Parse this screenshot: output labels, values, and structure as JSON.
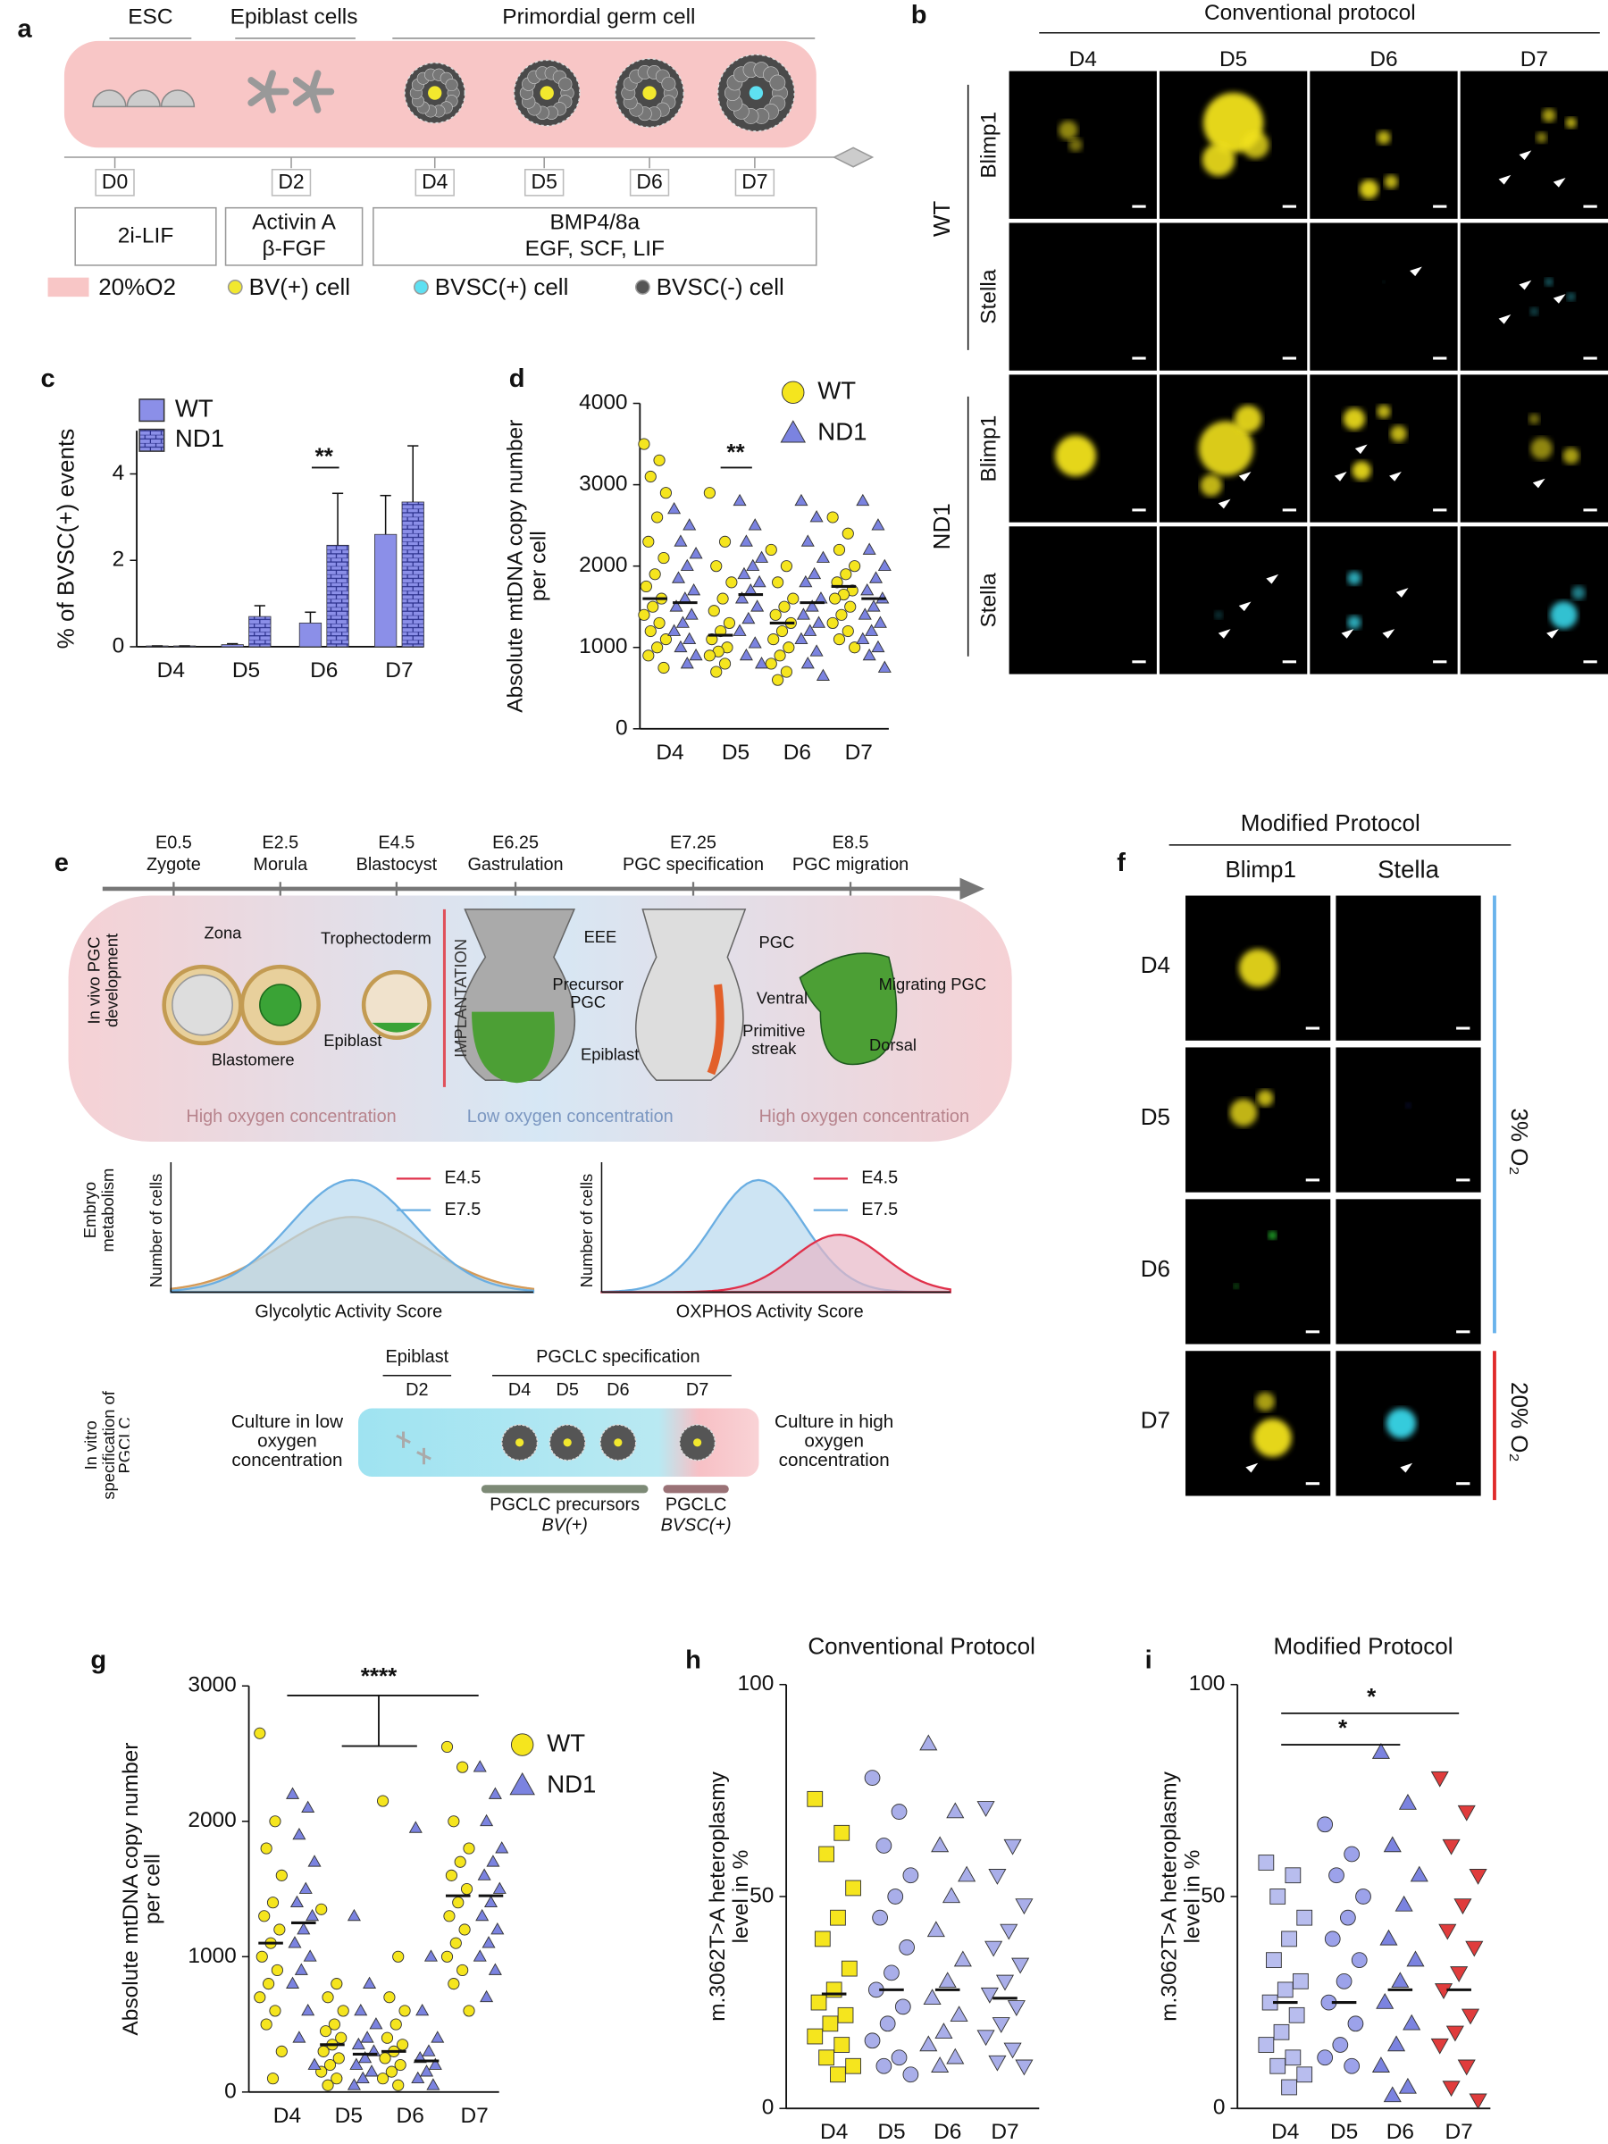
{
  "panel_a": {
    "label": "a",
    "stages": [
      "ESC",
      "Epiblast cells",
      "Primordial germ cell"
    ],
    "days": [
      "D0",
      "D2",
      "D4",
      "D5",
      "D6",
      "D7"
    ],
    "media": [
      [
        "2i-LIF"
      ],
      [
        "Activin A",
        "β-FGF"
      ],
      [
        "BMP4/8a",
        "EGF, SCF, LIF"
      ]
    ],
    "legend": [
      "20%O2",
      "BV(+) cell",
      "BVSC(+) cell",
      "BVSC(-) cell"
    ]
  },
  "panel_b": {
    "label": "b",
    "title": "Conventional protocol",
    "columns": [
      "D4",
      "D5",
      "D6",
      "D7"
    ],
    "rows": [
      "Blimp1",
      "Stella",
      "Blimp1",
      "Stella"
    ],
    "groups": [
      "WT",
      "ND1"
    ]
  },
  "panel_e": {
    "label": "e",
    "timeline": [
      [
        "E0.5",
        "Zygote"
      ],
      [
        "E2.5",
        "Morula"
      ],
      [
        "E4.5",
        "Blastocyst"
      ],
      [
        "E6.25",
        "Gastrulation"
      ],
      [
        "E7.25",
        "PGC specification"
      ],
      [
        "E8.5",
        "PGC migration"
      ]
    ],
    "in_vivo": "In vivo PGC development",
    "embryo_labels": [
      "Zona",
      "Trophectoderm",
      "Blastomere",
      "Epiblast",
      "IMPLANTATION",
      "EEE",
      "Precursor PGC",
      "Epiblast",
      "PGC",
      "Primitive streak",
      "Ventral",
      "Dorsal",
      "Migrating PGC"
    ],
    "oxygen": [
      "High oxygen concentration",
      "Low oxygen concentration",
      "High oxygen concentration"
    ],
    "metabolism": "Embryo metabolism",
    "plots": [
      {
        "ylabel": "Number of cells",
        "xlabel": "Glycolytic Activity Score",
        "legend": [
          "E4.5",
          "E7.5"
        ]
      },
      {
        "ylabel": "Number of cells",
        "xlabel": "OXPHOS Activity Score",
        "legend": [
          "E4.5",
          "E7.5"
        ]
      }
    ],
    "in_vitro": "In vitro specification of PGCLC",
    "steps": [
      "Epiblast",
      "D2",
      "PGCLC specification",
      "D4",
      "D5",
      "D6",
      "D7"
    ],
    "culture": [
      "Culture in low oxygen concentration",
      "Culture in high oxygen concentration"
    ],
    "bars": [
      [
        "PGCLC precursors",
        "BV(+)"
      ],
      [
        "PGCLC",
        "BVSC(+)"
      ]
    ]
  },
  "panel_f": {
    "label": "f",
    "title": "Modified Protocol",
    "columns": [
      "Blimp1",
      "Stella"
    ],
    "rows": [
      "D4",
      "D5",
      "D6",
      "D7"
    ],
    "conditions": [
      "3% O₂",
      "20% O₂"
    ]
  },
  "chart_data": [
    {
      "panel": "c",
      "type": "bar",
      "categories": [
        "D4",
        "D5",
        "D6",
        "D7"
      ],
      "ylabel": "% of BVSC(+) events",
      "ylim": [
        0,
        5
      ],
      "yticks": [
        0,
        2,
        4
      ],
      "annotations": [
        "**"
      ],
      "series": [
        {
          "name": "WT",
          "color": "#8b8fe8",
          "values": [
            0.02,
            0.05,
            0.55,
            2.6
          ],
          "errors": [
            0,
            0.02,
            0.25,
            0.9
          ]
        },
        {
          "name": "ND1",
          "color": "#8b8fe8",
          "pattern": "brick",
          "values": [
            0.02,
            0.7,
            2.35,
            3.35
          ],
          "errors": [
            0,
            0.25,
            1.2,
            1.3
          ]
        }
      ]
    },
    {
      "panel": "d",
      "type": "strip",
      "categories": [
        "D4",
        "D5",
        "D6",
        "D7"
      ],
      "ylabel": "Absolute mtDNA copy number per cell",
      "ylim": [
        0,
        4000
      ],
      "yticks": [
        0,
        1000,
        2000,
        3000,
        4000
      ],
      "annotations": [
        "**"
      ],
      "series": [
        {
          "name": "WT",
          "color": "#f5e51e",
          "marker": "circle",
          "values": [
            [
              3500,
              3300,
              3100,
              2900,
              2600,
              2300,
              2100,
              1900,
              1750,
              1600,
              1500,
              1400,
              1300,
              1200,
              1100,
              1000,
              900,
              750
            ],
            [
              2900,
              2300,
              2000,
              1800,
              1600,
              1450,
              1300,
              1200,
              1100,
              1000,
              950,
              900,
              800,
              700
            ],
            [
              2200,
              2000,
              1800,
              1600,
              1500,
              1400,
              1300,
              1200,
              1100,
              1000,
              900,
              800,
              700,
              600
            ],
            [
              2600,
              2400,
              2200,
              2000,
              1900,
              1800,
              1700,
              1650,
              1600,
              1500,
              1400,
              1300,
              1200,
              1100,
              1000
            ]
          ],
          "means": [
            1600,
            1150,
            1300,
            1750
          ]
        },
        {
          "name": "ND1",
          "color": "#7b83e0",
          "marker": "triangle",
          "values": [
            [
              2700,
              2500,
              2300,
              2150,
              2000,
              1850,
              1700,
              1600,
              1500,
              1400,
              1300,
              1200,
              1100,
              1000,
              900,
              800
            ],
            [
              2800,
              2500,
              2300,
              2100,
              2000,
              1900,
              1800,
              1700,
              1600,
              1500,
              1350,
              1200,
              1050,
              900,
              800
            ],
            [
              2800,
              2600,
              2300,
              2100,
              1900,
              1800,
              1600,
              1500,
              1400,
              1300,
              1200,
              1100,
              950,
              800,
              650
            ],
            [
              2800,
              2500,
              2200,
              2000,
              1850,
              1700,
              1600,
              1500,
              1400,
              1300,
              1200,
              1100,
              1000,
              900,
              750
            ]
          ],
          "means": [
            1550,
            1650,
            1550,
            1600
          ]
        }
      ]
    },
    {
      "panel": "g",
      "type": "strip",
      "categories": [
        "D4",
        "D5",
        "D6",
        "D7"
      ],
      "ylabel": "Absolute mtDNA copy number per cell",
      "ylim": [
        0,
        3000
      ],
      "yticks": [
        0,
        1000,
        2000,
        3000
      ],
      "annotations": [
        "****"
      ],
      "series": [
        {
          "name": "WT",
          "color": "#f5e51e",
          "marker": "circle",
          "values": [
            [
              2650,
              2000,
              1800,
              1600,
              1400,
              1300,
              1200,
              1100,
              1000,
              900,
              800,
              700,
              600,
              500,
              300,
              100
            ],
            [
              1350,
              800,
              700,
              600,
              500,
              450,
              400,
              350,
              300,
              250,
              200,
              150,
              100,
              50
            ],
            [
              2150,
              1000,
              700,
              600,
              500,
              400,
              350,
              300,
              250,
              200,
              150,
              100,
              50
            ],
            [
              2550,
              2400,
              2000,
              1800,
              1700,
              1600,
              1500,
              1400,
              1300,
              1200,
              1100,
              1000,
              900,
              800,
              600
            ]
          ],
          "means": [
            1100,
            350,
            300,
            1450
          ]
        },
        {
          "name": "ND1",
          "color": "#7b83e0",
          "marker": "triangle",
          "values": [
            [
              2200,
              2100,
              1900,
              1700,
              1500,
              1400,
              1300,
              1200,
              1100,
              1000,
              900,
              800,
              600,
              400,
              200
            ],
            [
              1300,
              800,
              600,
              500,
              400,
              350,
              300,
              250,
              200,
              150,
              100,
              50
            ],
            [
              1950,
              1000,
              600,
              400,
              300,
              250,
              200,
              150,
              100,
              50
            ],
            [
              2400,
              2200,
              2000,
              1800,
              1700,
              1600,
              1500,
              1400,
              1300,
              1200,
              1100,
              1000,
              900,
              700
            ]
          ],
          "means": [
            1250,
            280,
            230,
            1450
          ]
        }
      ]
    },
    {
      "panel": "h",
      "type": "strip",
      "title": "Conventional Protocol",
      "categories": [
        "D4",
        "D5",
        "D6",
        "D7"
      ],
      "ylabel": "m.3062T>A heteroplasmy level in %",
      "ylim": [
        0,
        100
      ],
      "yticks": [
        0,
        50,
        100
      ],
      "annotations": [],
      "series": [
        {
          "colors": [
            "#f5e51e",
            "#a9aee9",
            "#a9aee9",
            "#a9aee9"
          ],
          "markers": [
            "square",
            "circle",
            "triangle",
            "down"
          ],
          "values": [
            [
              73,
              65,
              60,
              52,
              45,
              40,
              33,
              28,
              25,
              22,
              20,
              17,
              15,
              12,
              10,
              8
            ],
            [
              78,
              70,
              62,
              55,
              50,
              45,
              38,
              32,
              28,
              24,
              20,
              16,
              12,
              10,
              8
            ],
            [
              86,
              70,
              62,
              55,
              50,
              42,
              35,
              30,
              26,
              22,
              18,
              15,
              12,
              10
            ],
            [
              71,
              62,
              55,
              48,
              42,
              38,
              34,
              30,
              27,
              24,
              20,
              17,
              14,
              11,
              10
            ]
          ],
          "means": [
            27,
            28,
            28,
            26
          ]
        }
      ]
    },
    {
      "panel": "i",
      "type": "strip",
      "title": "Modified Protocol",
      "categories": [
        "D4",
        "D5",
        "D6",
        "D7"
      ],
      "ylabel": "m.3062T>A heteroplasmy level in %",
      "ylim": [
        0,
        100
      ],
      "yticks": [
        0,
        50,
        100
      ],
      "annotations": [
        "*",
        "*"
      ],
      "series": [
        {
          "colors": [
            "#b8bdee",
            "#9ca2ea",
            "#7b83e0",
            "#e03c3c"
          ],
          "markers": [
            "square",
            "circle",
            "triangle",
            "down"
          ],
          "values": [
            [
              58,
              55,
              50,
              45,
              40,
              35,
              30,
              28,
              25,
              22,
              18,
              15,
              12,
              10,
              8,
              5
            ],
            [
              67,
              60,
              55,
              50,
              45,
              40,
              35,
              30,
              25,
              20,
              15,
              12,
              10
            ],
            [
              84,
              72,
              62,
              55,
              48,
              40,
              35,
              30,
              25,
              20,
              15,
              10,
              5,
              3
            ],
            [
              78,
              70,
              62,
              55,
              48,
              42,
              38,
              32,
              28,
              22,
              18,
              15,
              10,
              5,
              2
            ]
          ],
          "means": [
            25,
            25,
            28,
            28
          ]
        }
      ]
    }
  ]
}
